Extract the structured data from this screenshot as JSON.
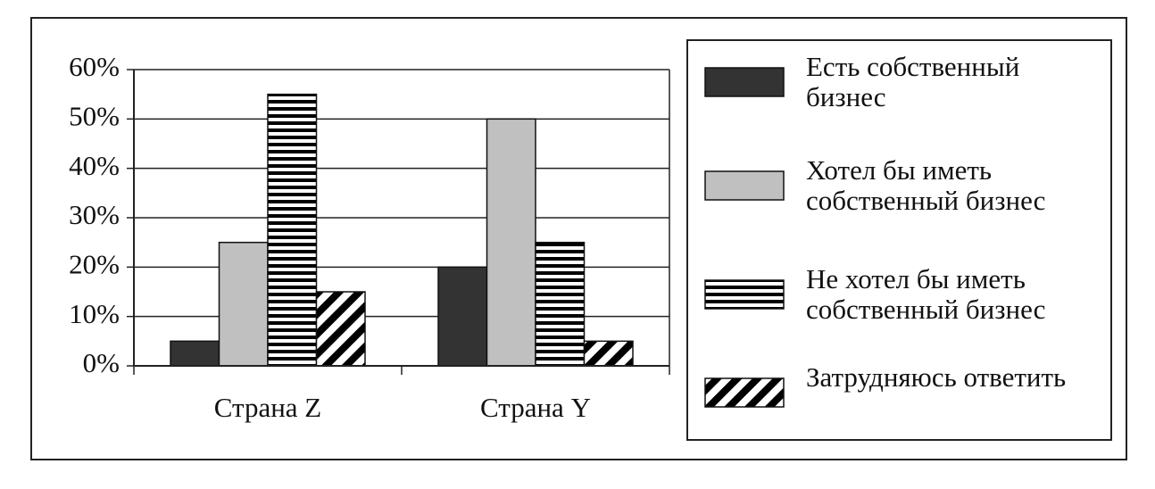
{
  "chart_data": {
    "type": "bar",
    "categories": [
      "Страна Z",
      "Страна Y"
    ],
    "series": [
      {
        "name": "Есть собственный бизнес",
        "color": "#333333",
        "pattern": "solid",
        "values": [
          5,
          20
        ]
      },
      {
        "name": "Хотел бы иметь собственный бизнес",
        "color": "#c0c0c0",
        "pattern": "solid",
        "values": [
          25,
          50
        ]
      },
      {
        "name": "Не хотел бы иметь собственный бизнес",
        "color": "#000000",
        "pattern": "hstripes",
        "values": [
          55,
          25
        ]
      },
      {
        "name": "Затрудняюсь ответить",
        "color": "#000000",
        "pattern": "dstripes",
        "values": [
          15,
          5
        ]
      }
    ],
    "ylim": [
      0,
      60
    ],
    "yticks": [
      {
        "value": 0,
        "label": "0%"
      },
      {
        "value": 10,
        "label": "10%"
      },
      {
        "value": 20,
        "label": "20%"
      },
      {
        "value": 30,
        "label": "30%"
      },
      {
        "value": 40,
        "label": "40%"
      },
      {
        "value": 50,
        "label": "50%"
      },
      {
        "value": 60,
        "label": "60%"
      }
    ],
    "grid": true,
    "legend": "right"
  }
}
